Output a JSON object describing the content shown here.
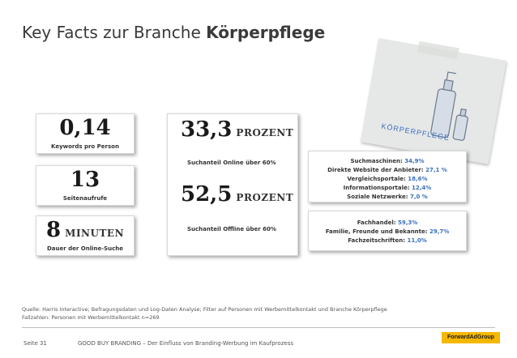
{
  "title": {
    "prefix": "Key Facts zur Branche",
    "bold": "Körperpflege"
  },
  "cards": {
    "keywords": {
      "value": "0,14",
      "label": "Keywords pro Person"
    },
    "pageviews": {
      "value": "13",
      "label": "Seitenaufrufe"
    },
    "duration": {
      "value": "8",
      "unit": "MINUTEN",
      "label": "Dauer der Online-Suche"
    },
    "online": {
      "value": "33,3",
      "unit": "PROZENT",
      "label": "Suchanteil Online über 60%"
    },
    "offline": {
      "value": "52,5",
      "unit": "PROZENT",
      "label": "Suchanteil Offline über 60%"
    }
  },
  "online_sources": [
    {
      "name": "Suchmaschinen:",
      "value": "34,9%"
    },
    {
      "name": "Direkte Website der Anbieter:",
      "value": "27,1 %"
    },
    {
      "name": "Vergleichsportale:",
      "value": "18,6%"
    },
    {
      "name": "Informationsportale:",
      "value": "12,4%"
    },
    {
      "name": "Soziale Netzwerke:",
      "value": "7,0 %"
    }
  ],
  "offline_sources": [
    {
      "name": "Fachhandel:",
      "value": "59,3%"
    },
    {
      "name": "Familie, Freunde und Bekannte:",
      "value": "29,7%"
    },
    {
      "name": "Fachzeitschriften:",
      "value": "11,0%"
    }
  ],
  "note": {
    "label": "KÖRPERPFLEGE"
  },
  "source": {
    "line1": "Quelle: Harris Interactive; Befragungsdaten und Log-Daten Analyse; Filter auf Personen mit Werbemittelkontakt und Branche Körperpflege",
    "line2": "Fallzahlen: Personen mit Werbemittelkontakt n=269"
  },
  "footer": {
    "page": "Seite 31",
    "text": "GOOD BUY BRANDING – Der Einfluss von Branding-Werbung im Kaufprozess",
    "logo": "ForwardAdGroup"
  },
  "colors": {
    "accent": "#3a6fc0",
    "logo": "#f5b800"
  }
}
